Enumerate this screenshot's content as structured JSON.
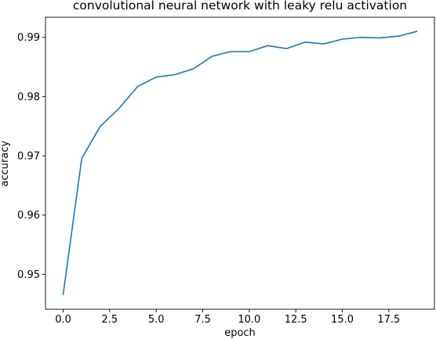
{
  "chart_data": {
    "type": "line",
    "title": "convolutional neural network with leaky relu activation",
    "xlabel": "epoch",
    "ylabel": "accuracy",
    "xlim": [
      -0.95,
      19.95
    ],
    "ylim": [
      0.9441,
      0.9934
    ],
    "xticks": [
      0.0,
      2.5,
      5.0,
      7.5,
      10.0,
      12.5,
      15.0,
      17.5
    ],
    "xtick_labels": [
      "0.0",
      "2.5",
      "5.0",
      "7.5",
      "10.0",
      "12.5",
      "15.0",
      "17.5"
    ],
    "yticks": [
      0.95,
      0.96,
      0.97,
      0.98,
      0.99
    ],
    "ytick_labels": [
      "0.95",
      "0.96",
      "0.97",
      "0.98",
      "0.99"
    ],
    "grid": false,
    "line_color": "#1f77b4",
    "series": [
      {
        "x": [
          0,
          1,
          2,
          3,
          4,
          5,
          6,
          7,
          8,
          9,
          10,
          11,
          12,
          13,
          14,
          15,
          16,
          17,
          18,
          19
        ],
        "values": [
          0.9466,
          0.9696,
          0.975,
          0.978,
          0.9817,
          0.9833,
          0.9837,
          0.9847,
          0.9868,
          0.9876,
          0.9876,
          0.9886,
          0.9881,
          0.9892,
          0.9889,
          0.9897,
          0.99,
          0.9899,
          0.9902,
          0.991
        ]
      }
    ]
  }
}
